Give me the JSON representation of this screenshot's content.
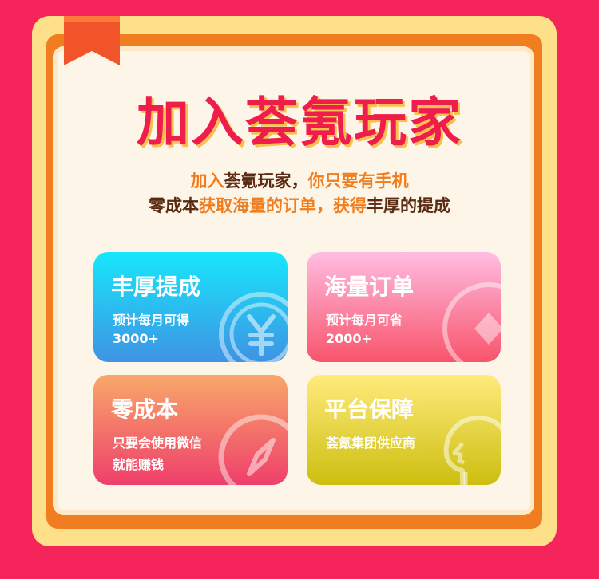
{
  "title": "加入荟氪玩家",
  "intro": {
    "line1": [
      {
        "text": "加入",
        "style": "hl"
      },
      {
        "text": "荟氪玩家，",
        "style": "dk"
      },
      {
        "text": "你只要有手机",
        "style": "hl"
      }
    ],
    "line2": [
      {
        "text": "零成本",
        "style": "dk"
      },
      {
        "text": "获取海量的订单，获得",
        "style": "hl"
      },
      {
        "text": "丰厚的提成",
        "style": "dk"
      }
    ]
  },
  "cards": [
    {
      "title": "丰厚提成",
      "line1": "预计每月可得",
      "line2": "3000+",
      "icon": "yuan-coin-icon"
    },
    {
      "title": "海量订单",
      "line1": "预计每月可省",
      "line2": "2000+",
      "icon": "diamond-coin-icon"
    },
    {
      "title": "零成本",
      "line1": "只要会使用微信",
      "line2": "就能赚钱",
      "icon": "compass-icon"
    },
    {
      "title": "平台保障",
      "line1": "荟氪集团供应商",
      "line2": "",
      "icon": "head-profile-icon"
    }
  ],
  "colors": {
    "background": "#f5245a",
    "frame_outer": "#ffe08a",
    "frame_orange": "#f07d1f",
    "title_red": "#ee1d4c",
    "highlight_orange": "#f07d1f",
    "dark_brown": "#5a2a12"
  }
}
